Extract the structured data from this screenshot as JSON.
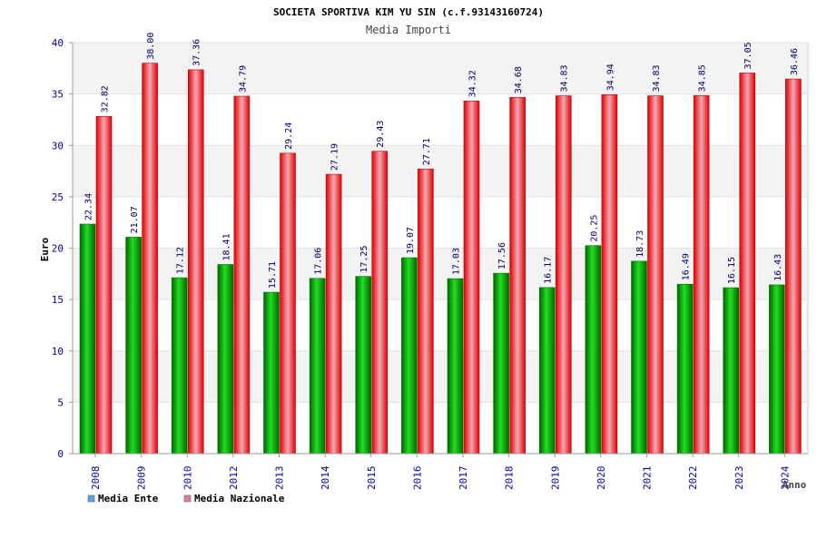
{
  "chart_data": {
    "type": "bar",
    "title": "SOCIETA SPORTIVA KIM YU SIN (c.f.93143160724)",
    "subtitle": "Media Importi",
    "xlabel": "Anno",
    "ylabel": "Euro",
    "ylim": [
      0,
      40
    ],
    "yticks": [
      0,
      5,
      10,
      15,
      20,
      25,
      30,
      35,
      40
    ],
    "grid": true,
    "legend_position": "bottom-left",
    "categories": [
      "2008",
      "2009",
      "2010",
      "2012",
      "2013",
      "2014",
      "2015",
      "2016",
      "2017",
      "2018",
      "2019",
      "2020",
      "2021",
      "2022",
      "2023",
      "2024"
    ],
    "series": [
      {
        "name": "Media Ente",
        "color": "#00aa00",
        "legend_color": "#5aa0e6",
        "values": [
          22.34,
          21.07,
          17.12,
          18.41,
          15.71,
          17.06,
          17.25,
          19.07,
          17.03,
          17.56,
          16.17,
          20.25,
          18.73,
          16.49,
          16.15,
          16.43
        ],
        "labels": [
          "22.34",
          "21.07",
          "17.12",
          "18.41",
          "15.71",
          "17.06",
          "17.25",
          "19.07",
          "17.03",
          "17.56",
          "16.17",
          "20.25",
          "18.73",
          "16.49",
          "16.15",
          "16.43"
        ]
      },
      {
        "name": "Media Nazionale",
        "color": "#ee1111",
        "legend_color": "#e07aa8",
        "values": [
          32.82,
          38.0,
          37.36,
          34.79,
          29.24,
          27.19,
          29.43,
          27.71,
          34.32,
          34.68,
          34.83,
          34.94,
          34.83,
          34.85,
          37.05,
          36.46
        ],
        "labels": [
          "32.82",
          "38.00",
          "37.36",
          "34.79",
          "29.24",
          "27.19",
          "29.43",
          "27.71",
          "34.32",
          "34.68",
          "34.83",
          "34.94",
          "34.83",
          "34.85",
          "37.05",
          "36.46"
        ]
      }
    ]
  }
}
